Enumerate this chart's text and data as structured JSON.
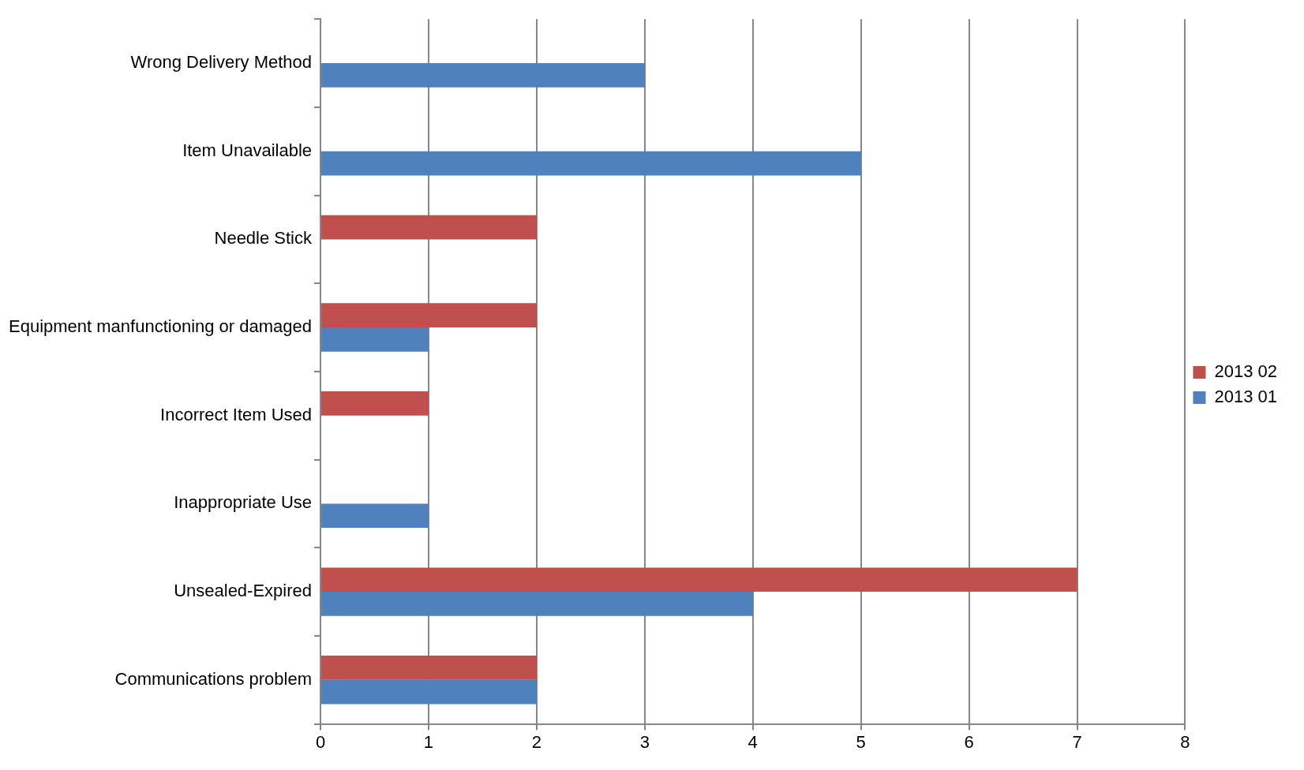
{
  "chart_data": {
    "type": "bar",
    "orientation": "horizontal",
    "categories": [
      "Wrong Delivery Method",
      "Item Unavailable",
      "Needle Stick",
      "Equipment manfunctioning or damaged",
      "Incorrect Item Used",
      "Inappropriate Use",
      "Unsealed-Expired",
      "Communications problem"
    ],
    "series": [
      {
        "name": "2013 02",
        "color": "#c0504d",
        "values": [
          null,
          null,
          2,
          2,
          1,
          null,
          7,
          2
        ]
      },
      {
        "name": "2013 01",
        "color": "#4f81bd",
        "values": [
          3,
          5,
          null,
          1,
          null,
          1,
          4,
          2
        ]
      }
    ],
    "xlim": [
      0,
      8
    ],
    "xticks": [
      0,
      1,
      2,
      3,
      4,
      5,
      6,
      7,
      8
    ],
    "grid": "x",
    "legend": "right"
  }
}
